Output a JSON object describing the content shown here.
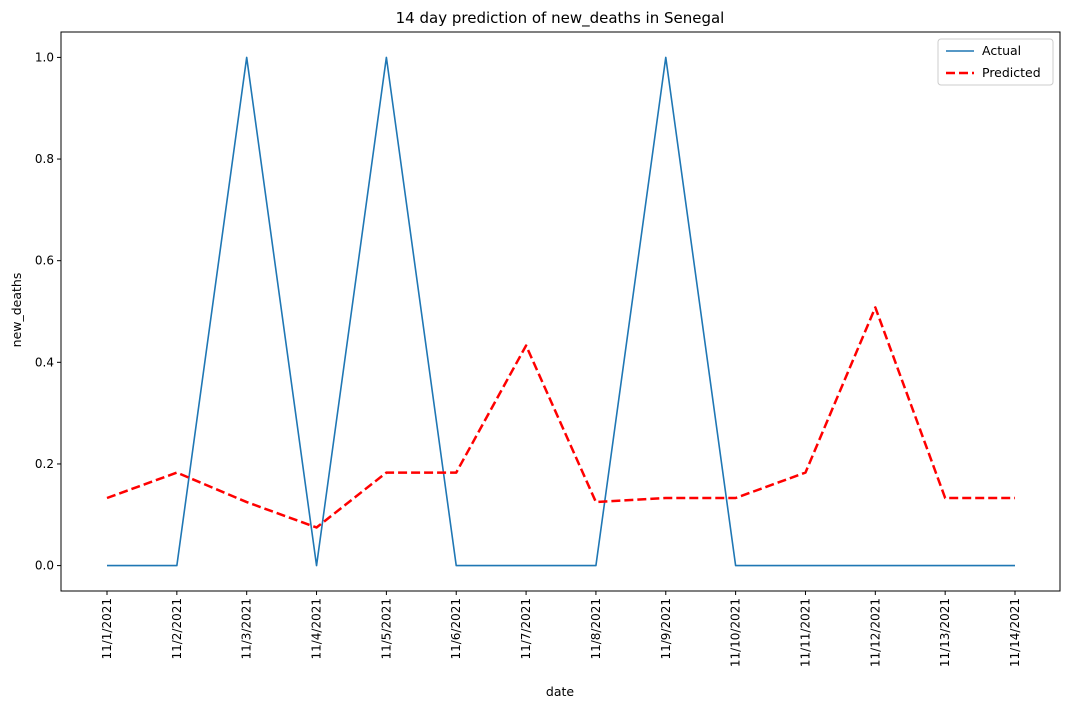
{
  "chart_data": {
    "type": "line",
    "title": "14 day prediction of new_deaths in Senegal",
    "xlabel": "date",
    "ylabel": "new_deaths",
    "categories": [
      "11/1/2021",
      "11/2/2021",
      "11/3/2021",
      "11/4/2021",
      "11/5/2021",
      "11/6/2021",
      "11/7/2021",
      "11/8/2021",
      "11/9/2021",
      "11/10/2021",
      "11/11/2021",
      "11/12/2021",
      "11/13/2021",
      "11/14/2021"
    ],
    "ylim": [
      -0.05,
      1.05
    ],
    "yticks": [
      "0.0",
      "0.2",
      "0.4",
      "0.6",
      "0.8",
      "1.0"
    ],
    "ytick_values": [
      0,
      0.2,
      0.4,
      0.6,
      0.8,
      1.0
    ],
    "grid": false,
    "legend_position": "top-right",
    "series": [
      {
        "name": "Actual",
        "color": "#1f77b4",
        "style": "solid",
        "values": [
          0,
          0,
          1,
          0,
          1,
          0,
          0,
          0,
          1,
          0,
          0,
          0,
          0,
          0
        ]
      },
      {
        "name": "Predicted",
        "color": "#ff0000",
        "style": "dashed",
        "values": [
          0.133,
          0.183,
          0.125,
          0.075,
          0.183,
          0.183,
          0.433,
          0.125,
          0.133,
          0.133,
          0.183,
          0.508,
          0.133,
          0.133
        ]
      }
    ]
  }
}
